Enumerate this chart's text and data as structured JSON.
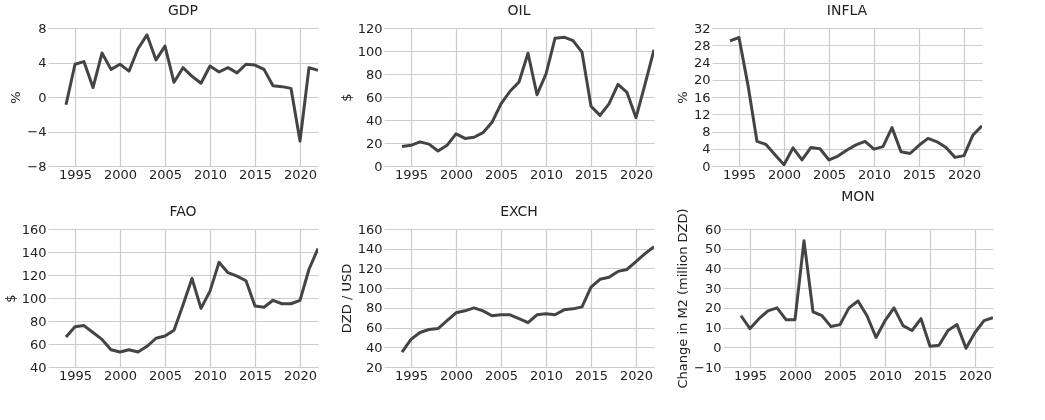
{
  "chart_data": [
    {
      "type": "line",
      "title": "GDP",
      "ylabel": "%",
      "x": [
        1994,
        1995,
        1996,
        1997,
        1998,
        1999,
        2000,
        2001,
        2002,
        2003,
        2004,
        2005,
        2006,
        2007,
        2008,
        2009,
        2010,
        2011,
        2012,
        2013,
        2014,
        2015,
        2016,
        2017,
        2018,
        2019,
        2020,
        2021,
        2022
      ],
      "series": [
        {
          "color": "#444444",
          "values": [
            -0.9,
            3.8,
            4.1,
            1.1,
            5.1,
            3.2,
            3.8,
            3.0,
            5.6,
            7.2,
            4.3,
            5.9,
            1.7,
            3.4,
            2.4,
            1.6,
            3.6,
            2.9,
            3.4,
            2.8,
            3.8,
            3.7,
            3.2,
            1.3,
            1.2,
            1.0,
            -5.1,
            3.4,
            3.1
          ]
        }
      ],
      "xlim": [
        1992,
        2022
      ],
      "xticks": [
        1995,
        2000,
        2005,
        2010,
        2015,
        2020
      ],
      "ylim": [
        -8,
        8
      ],
      "yticks": [
        -8,
        -4,
        0,
        4,
        8
      ],
      "grid": true,
      "legend": false,
      "marker": "none",
      "line_style": "solid"
    },
    {
      "type": "line",
      "title": "OIL",
      "ylabel": "$",
      "x": [
        1994,
        1995,
        1996,
        1997,
        1998,
        1999,
        2000,
        2001,
        2002,
        2003,
        2004,
        2005,
        2006,
        2007,
        2008,
        2009,
        2010,
        2011,
        2012,
        2013,
        2014,
        2015,
        2016,
        2017,
        2018,
        2019,
        2020,
        2021,
        2022
      ],
      "series": [
        {
          "color": "#444444",
          "values": [
            17,
            18,
            21,
            19,
            13,
            18,
            28,
            24,
            25,
            29,
            38,
            54,
            65,
            73,
            98,
            62,
            80,
            111,
            112,
            109,
            99,
            52,
            44,
            54,
            71,
            64,
            42,
            71,
            101
          ]
        }
      ],
      "xlim": [
        1992,
        2022
      ],
      "xticks": [
        1995,
        2000,
        2005,
        2010,
        2015,
        2020
      ],
      "ylim": [
        0,
        120
      ],
      "yticks": [
        0,
        20,
        40,
        60,
        80,
        100,
        120
      ],
      "grid": true,
      "legend": false,
      "marker": "none",
      "line_style": "solid"
    },
    {
      "type": "line",
      "title": "INFLA",
      "ylabel": "%",
      "x": [
        1994,
        1995,
        1996,
        1997,
        1998,
        1999,
        2000,
        2001,
        2002,
        2003,
        2004,
        2005,
        2006,
        2007,
        2008,
        2009,
        2010,
        2011,
        2012,
        2013,
        2014,
        2015,
        2016,
        2017,
        2018,
        2019,
        2020,
        2021,
        2022
      ],
      "series": [
        {
          "color": "#444444",
          "values": [
            29,
            29.8,
            18.7,
            5.7,
            5,
            2.6,
            0.3,
            4.2,
            1.4,
            4.3,
            4,
            1.4,
            2.3,
            3.7,
            4.9,
            5.7,
            3.9,
            4.5,
            8.9,
            3.3,
            2.9,
            4.8,
            6.4,
            5.6,
            4.3,
            2,
            2.4,
            7.2,
            9.3
          ]
        }
      ],
      "xlim": [
        1992,
        2022
      ],
      "xticks": [
        1995,
        2000,
        2005,
        2010,
        2015,
        2020
      ],
      "ylim": [
        0,
        32
      ],
      "yticks": [
        0,
        4,
        8,
        12,
        16,
        20,
        24,
        28,
        32
      ],
      "grid": true,
      "legend": false,
      "marker": "none",
      "line_style": "solid"
    },
    {
      "type": "line",
      "title": "FAO",
      "ylabel": "$",
      "x": [
        1994,
        1995,
        1996,
        1997,
        1998,
        1999,
        2000,
        2001,
        2002,
        2003,
        2004,
        2005,
        2006,
        2007,
        2008,
        2009,
        2010,
        2011,
        2012,
        2013,
        2014,
        2015,
        2016,
        2017,
        2018,
        2019,
        2020,
        2021,
        2022
      ],
      "series": [
        {
          "color": "#444444",
          "values": [
            66,
            75,
            76,
            70,
            64,
            55,
            53,
            55,
            53,
            58,
            65,
            67,
            72,
            94,
            117,
            91,
            106,
            131,
            122,
            119,
            115,
            93,
            92,
            98,
            95,
            95,
            98,
            125,
            143
          ]
        }
      ],
      "xlim": [
        1992,
        2022
      ],
      "xticks": [
        1995,
        2000,
        2005,
        2010,
        2015,
        2020
      ],
      "ylim": [
        40,
        160
      ],
      "yticks": [
        40,
        60,
        80,
        100,
        120,
        140,
        160
      ],
      "grid": true,
      "legend": false,
      "marker": "none",
      "line_style": "solid"
    },
    {
      "type": "line",
      "title": "EXCH",
      "ylabel": "DZD / USD",
      "x": [
        1994,
        1995,
        1996,
        1997,
        1998,
        1999,
        2000,
        2001,
        2002,
        2003,
        2004,
        2005,
        2006,
        2007,
        2008,
        2009,
        2010,
        2011,
        2012,
        2013,
        2014,
        2015,
        2016,
        2017,
        2018,
        2019,
        2020,
        2021,
        2022
      ],
      "series": [
        {
          "color": "#444444",
          "values": [
            35,
            48,
            55,
            58,
            59,
            67,
            75,
            77,
            80,
            77,
            72,
            73,
            73,
            69,
            65,
            73,
            74,
            73,
            78,
            79,
            81,
            101,
            109,
            111,
            117,
            119,
            127,
            135,
            142
          ]
        }
      ],
      "xlim": [
        1992,
        2022
      ],
      "xticks": [
        1995,
        2000,
        2005,
        2010,
        2015,
        2020
      ],
      "ylim": [
        20,
        160
      ],
      "yticks": [
        20,
        40,
        60,
        80,
        100,
        120,
        140,
        160
      ],
      "grid": true,
      "legend": false,
      "marker": "none",
      "line_style": "solid"
    },
    {
      "type": "line",
      "title": "MON",
      "ylabel": "Change in M2 (million DZD)",
      "x": [
        1994,
        1995,
        1996,
        1997,
        1998,
        1999,
        2000,
        2001,
        2002,
        2003,
        2004,
        2005,
        2006,
        2007,
        2008,
        2009,
        2010,
        2011,
        2012,
        2013,
        2014,
        2015,
        2016,
        2017,
        2018,
        2019,
        2020,
        2021,
        2022
      ],
      "series": [
        {
          "color": "#444444",
          "values": [
            16,
            9.5,
            14.5,
            18.5,
            20,
            14,
            14,
            54,
            18,
            16,
            10.5,
            11.5,
            20,
            23.5,
            16,
            5,
            13.5,
            20,
            11,
            8.5,
            14.5,
            0.5,
            1,
            8.5,
            11.5,
            -0.5,
            7.5,
            13.5,
            15
          ]
        }
      ],
      "xlim": [
        1992,
        2022
      ],
      "xticks": [
        1995,
        2000,
        2005,
        2010,
        2015,
        2020
      ],
      "ylim": [
        -10,
        60
      ],
      "yticks": [
        -10,
        0,
        10,
        20,
        30,
        40,
        50,
        60
      ],
      "grid": true,
      "legend": false,
      "marker": "none",
      "line_style": "solid"
    }
  ]
}
